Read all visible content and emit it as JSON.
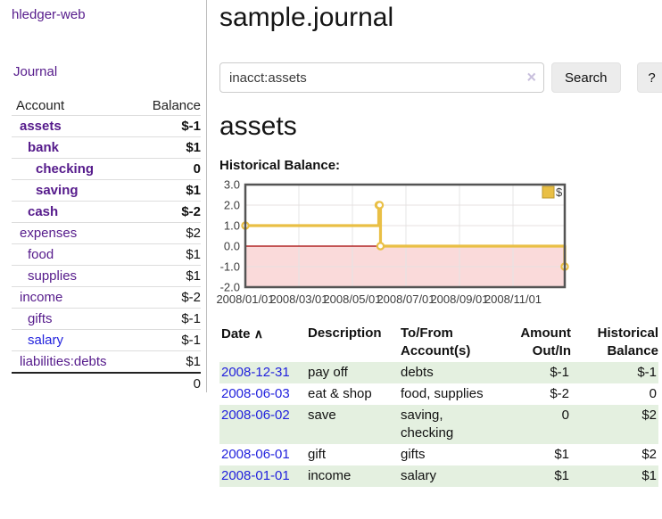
{
  "sidebar": {
    "brand": "hledger-web",
    "nav_journal": "Journal",
    "accounts_table": {
      "headers": {
        "account": "Account",
        "balance": "Balance"
      },
      "rows": [
        {
          "name": "assets",
          "depth": 1,
          "bold": true,
          "balance": "$-1"
        },
        {
          "name": "bank",
          "depth": 2,
          "bold": true,
          "balance": "$1"
        },
        {
          "name": "checking",
          "depth": 3,
          "bold": true,
          "balance": "0"
        },
        {
          "name": "saving",
          "depth": 3,
          "bold": true,
          "balance": "$1"
        },
        {
          "name": "cash",
          "depth": 2,
          "bold": true,
          "balance": "$-2"
        },
        {
          "name": "expenses",
          "depth": 1,
          "bold": false,
          "balance": "$2"
        },
        {
          "name": "food",
          "depth": 2,
          "bold": false,
          "balance": "$1"
        },
        {
          "name": "supplies",
          "depth": 2,
          "bold": false,
          "balance": "$1"
        },
        {
          "name": "income",
          "depth": 1,
          "bold": false,
          "balance": "$-2"
        },
        {
          "name": "gifts",
          "depth": 2,
          "bold": false,
          "balance": "$-1"
        },
        {
          "name": "salary",
          "depth": 2,
          "bold": false,
          "link": "blue",
          "balance": "$-1"
        },
        {
          "name": "liabilities:debts",
          "depth": 1,
          "bold": false,
          "balance": "$1"
        }
      ],
      "total": "0"
    }
  },
  "header": {
    "title": "sample.journal"
  },
  "search": {
    "value": "inacct:assets",
    "clear_icon": "×",
    "button_label": "Search",
    "help_label": "?"
  },
  "account_page": {
    "heading": "assets",
    "chart_label": "Historical Balance:"
  },
  "chart_data": {
    "type": "line",
    "title": "Historical Balance:",
    "step": true,
    "series": [
      {
        "name": "$",
        "color": "#e9bf45",
        "points": [
          [
            "2008-01-01",
            1
          ],
          [
            "2008-06-01",
            2
          ],
          [
            "2008-06-02",
            2
          ],
          [
            "2008-06-03",
            0
          ],
          [
            "2008-12-31",
            -1
          ]
        ]
      }
    ],
    "ylim": [
      -2,
      3
    ],
    "yticks": [
      "3.0",
      "2.0",
      "1.0",
      "0.0",
      "-1.0",
      "-2.0"
    ],
    "xticks": [
      "2008/01/01",
      "2008/03/01",
      "2008/05/01",
      "2008/07/01",
      "2008/09/01",
      "2008/11/01"
    ],
    "x_start": "2008-01-01",
    "x_tick_interval_days": 61,
    "grid": true,
    "legend_position": "top-right",
    "negative_region_color": "#fadada",
    "zero_line_color": "#a40000"
  },
  "register": {
    "headers": {
      "date": "Date",
      "sort_indicator": "∧",
      "description": "Description",
      "accounts": "To/From Account(s)",
      "amount": "Amount Out/In",
      "balance": "Historical Balance"
    },
    "rows": [
      {
        "date": "2008-12-31",
        "description": "pay off",
        "accounts": "debts",
        "amount": "$-1",
        "balance": "$-1"
      },
      {
        "date": "2008-06-03",
        "description": "eat & shop",
        "accounts": "food, supplies",
        "amount": "$-2",
        "balance": "0"
      },
      {
        "date": "2008-06-02",
        "description": "save",
        "accounts": "saving, checking",
        "amount": "0",
        "balance": "$2"
      },
      {
        "date": "2008-06-01",
        "description": "gift",
        "accounts": "gifts",
        "amount": "$1",
        "balance": "$2"
      },
      {
        "date": "2008-01-01",
        "description": "income",
        "accounts": "salary",
        "amount": "$1",
        "balance": "$1"
      }
    ]
  },
  "colors": {
    "link_purple": "#551a8b",
    "link_blue": "#2222dd",
    "negative_strong": "#8b1212",
    "negative_soft": "#b26b70",
    "row_stripe_green": "#e4f0e0",
    "chart_line_gold": "#e9bf45",
    "chart_negative_fill": "#fadada",
    "chart_zero_line": "#a40000",
    "button_bg": "#ececec"
  }
}
